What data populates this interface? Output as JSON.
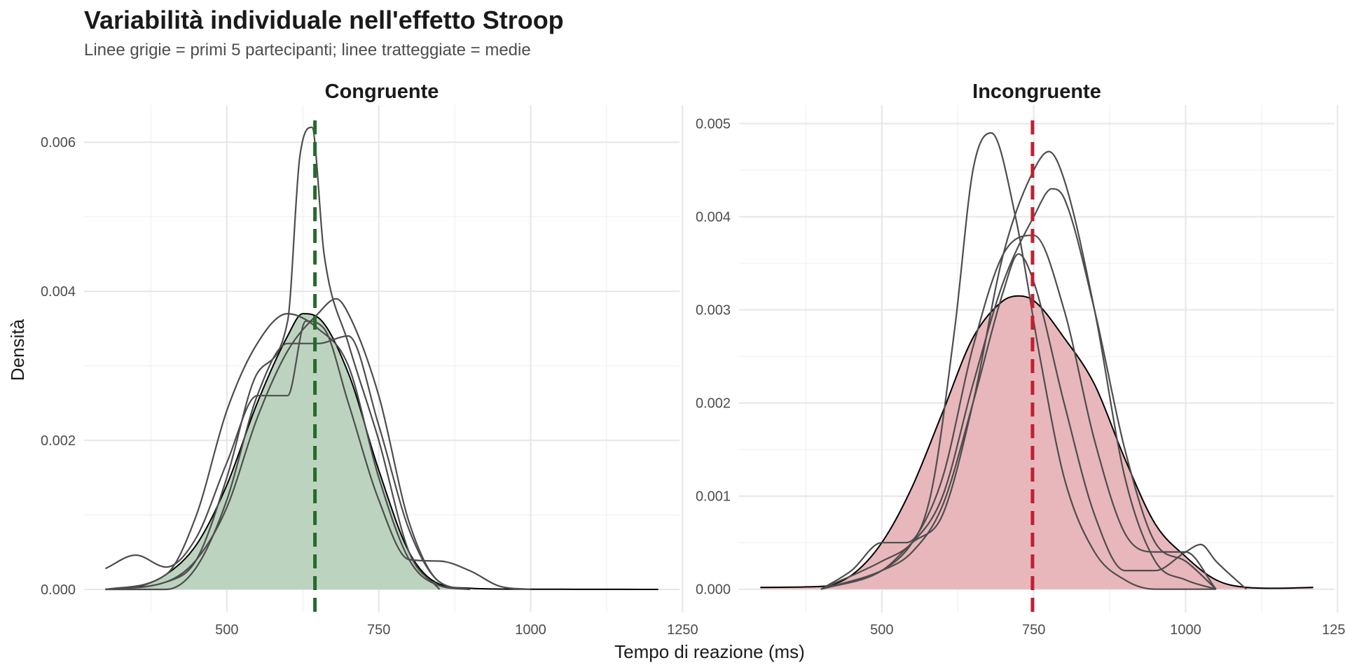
{
  "title": "Variabilità individuale nell'effetto Stroop",
  "subtitle": "Linee grigie = primi 5 partecipanti; linee tratteggiate = medie",
  "chart_data": {
    "type": "area",
    "xlabel": "Tempo di reazione (ms)",
    "ylabel": "Densità",
    "xlim": [
      265,
      1245
    ],
    "x_ticks": [
      500,
      750,
      1000,
      1250
    ],
    "grid": true,
    "facets": [
      {
        "name": "Congruente",
        "fill_color": "#bcd4bf",
        "mean_color": "#256b2c",
        "mean_x": 645,
        "ylim": [
          -0.00031,
          0.0065
        ],
        "y_ticks": [
          0,
          0.002,
          0.004,
          0.006
        ],
        "y_tick_labels": [
          "0.000",
          "0.002",
          "0.004",
          "0.006"
        ],
        "overall_density": {
          "x": [
            300,
            350,
            400,
            450,
            500,
            550,
            600,
            625,
            650,
            700,
            750,
            800,
            850,
            900,
            950,
            1000,
            1050,
            1100,
            1150,
            1210
          ],
          "y": [
            0.0,
            3e-05,
            0.0002,
            0.0006,
            0.0014,
            0.0025,
            0.0034,
            0.0037,
            0.00365,
            0.0029,
            0.0016,
            0.0005,
            7e-05,
            1.5e-05,
            5e-06,
            3e-06,
            2e-06,
            1e-06,
            1e-06,
            0.0
          ]
        },
        "participant_densities": [
          {
            "x": [
              300,
              350,
              400,
              450,
              500,
              550,
              600,
              630,
              660,
              700,
              750,
              800,
              850,
              900,
              950,
              1000
            ],
            "y": [
              0.00028,
              0.00046,
              0.0003,
              0.0007,
              0.0017,
              0.0026,
              0.0026,
              0.0036,
              0.0035,
              0.0025,
              0.0012,
              0.0004,
              0.00038,
              0.00025,
              4e-05,
              0.0
            ]
          },
          {
            "x": [
              300,
              400,
              450,
              500,
              550,
              600,
              620,
              640,
              660,
              700,
              750,
              800,
              850
            ],
            "y": [
              0.0,
              0.0001,
              0.0004,
              0.0015,
              0.0029,
              0.0036,
              0.0058,
              0.0062,
              0.0045,
              0.0033,
              0.002,
              0.0005,
              0.0
            ]
          },
          {
            "x": [
              300,
              400,
              450,
              500,
              550,
              600,
              650,
              700,
              750,
              800,
              850,
              900
            ],
            "y": [
              0.0,
              0.0002,
              0.001,
              0.0024,
              0.0033,
              0.0037,
              0.0035,
              0.003,
              0.0015,
              0.0004,
              5e-05,
              0.0
            ]
          },
          {
            "x": [
              300,
              400,
              450,
              500,
              550,
              600,
              650,
              680,
              700,
              750,
              800,
              850,
              900
            ],
            "y": [
              0.0,
              0.0001,
              0.0004,
              0.0011,
              0.0023,
              0.0032,
              0.0037,
              0.0039,
              0.0037,
              0.0026,
              0.0009,
              0.0001,
              0.0
            ]
          },
          {
            "x": [
              300,
              400,
              450,
              500,
              550,
              600,
              650,
              700,
              750,
              800,
              850,
              900
            ],
            "y": [
              0.0,
              0.0,
              0.0003,
              0.0012,
              0.0026,
              0.0033,
              0.0033,
              0.0034,
              0.0022,
              0.0008,
              0.0001,
              0.0
            ]
          }
        ]
      },
      {
        "name": "Incongruente",
        "fill_color": "#e8b7bb",
        "mean_color": "#c0202f",
        "mean_x": 748,
        "ylim": [
          -0.00025,
          0.0052
        ],
        "y_ticks": [
          0,
          0.001,
          0.002,
          0.003,
          0.004,
          0.005
        ],
        "y_tick_labels": [
          "0.000",
          "0.001",
          "0.002",
          "0.003",
          "0.004",
          "0.005"
        ],
        "overall_density": {
          "x": [
            300,
            400,
            450,
            500,
            550,
            600,
            650,
            700,
            725,
            750,
            800,
            850,
            900,
            950,
            1000,
            1050,
            1100,
            1150,
            1210
          ],
          "y": [
            2e-05,
            3e-05,
            0.00015,
            0.0005,
            0.0011,
            0.0019,
            0.0027,
            0.0031,
            0.00315,
            0.0031,
            0.0027,
            0.0022,
            0.0014,
            0.0007,
            0.00035,
            0.0001,
            2e-05,
            1e-05,
            2e-05
          ]
        },
        "participant_densities": [
          {
            "x": [
              400,
              450,
              500,
              540,
              580,
              620,
              650,
              680,
              720,
              760,
              800,
              850,
              900,
              950,
              1000,
              1050
            ],
            "y": [
              0.0,
              0.0002,
              0.0005,
              0.0005,
              0.001,
              0.0028,
              0.0045,
              0.0049,
              0.004,
              0.0025,
              0.0012,
              0.0004,
              0.0001,
              0.0,
              0.0,
              0.0
            ]
          },
          {
            "x": [
              400,
              500,
              550,
              600,
              650,
              700,
              750,
              775,
              800,
              850,
              900,
              950,
              1000,
              1050
            ],
            "y": [
              0.0,
              0.0002,
              0.0005,
              0.0008,
              0.002,
              0.0036,
              0.0045,
              0.0047,
              0.0044,
              0.003,
              0.0012,
              0.0003,
              0.0001,
              0.0
            ]
          },
          {
            "x": [
              400,
              500,
              550,
              600,
              650,
              700,
              750,
              780,
              800,
              850,
              900,
              950,
              1000,
              1050
            ],
            "y": [
              0.0,
              0.0003,
              0.0005,
              0.001,
              0.0022,
              0.0033,
              0.004,
              0.0043,
              0.0042,
              0.003,
              0.0015,
              0.0005,
              0.0003,
              0.0
            ]
          },
          {
            "x": [
              400,
              500,
              550,
              600,
              650,
              700,
              750,
              800,
              850,
              900,
              950,
              1000,
              1050
            ],
            "y": [
              0.0,
              0.0002,
              0.0005,
              0.0012,
              0.0026,
              0.0036,
              0.0038,
              0.003,
              0.0016,
              0.0006,
              0.0004,
              0.0004,
              0.0
            ]
          },
          {
            "x": [
              400,
              500,
              550,
              600,
              650,
              700,
              725,
              750,
              800,
              850,
              900,
              950,
              1000,
              1025,
              1050,
              1100
            ],
            "y": [
              0.0,
              0.0002,
              0.0004,
              0.0009,
              0.002,
              0.0032,
              0.0036,
              0.0033,
              0.002,
              0.0008,
              0.0002,
              0.0002,
              0.0004,
              0.00048,
              0.0003,
              0.0
            ]
          }
        ]
      }
    ]
  }
}
